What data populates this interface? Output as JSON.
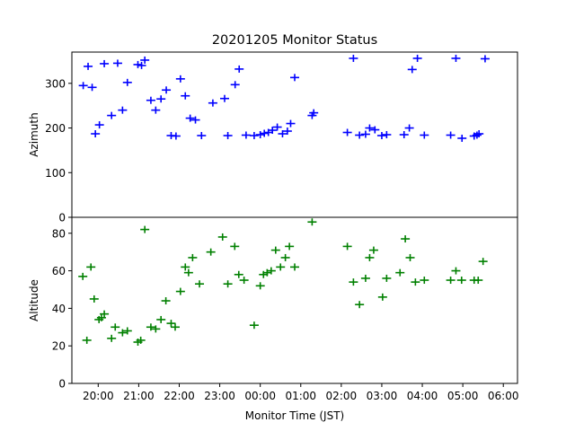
{
  "chart_data": {
    "type": "scatter",
    "title": "20201205 Monitor Status",
    "xlabel": "Monitor Time (JST)",
    "x_unit": "hours (JST clock, values past 24 are after midnight)",
    "xlim": [
      19.35,
      30.35
    ],
    "xticks": [
      {
        "value": 20,
        "label": "20:00"
      },
      {
        "value": 21,
        "label": "21:00"
      },
      {
        "value": 22,
        "label": "22:00"
      },
      {
        "value": 23,
        "label": "23:00"
      },
      {
        "value": 24,
        "label": "00:00"
      },
      {
        "value": 25,
        "label": "01:00"
      },
      {
        "value": 26,
        "label": "02:00"
      },
      {
        "value": 27,
        "label": "03:00"
      },
      {
        "value": 28,
        "label": "04:00"
      },
      {
        "value": 29,
        "label": "05:00"
      },
      {
        "value": 30,
        "label": "06:00"
      }
    ],
    "grid": false,
    "marker": "plus",
    "panels": [
      {
        "id": "azimuth",
        "ylabel": "Azimuth",
        "ylim": [
          0,
          370
        ],
        "yticks": [
          0,
          100,
          200,
          300
        ],
        "color": "#0000ff",
        "points": [
          [
            19.63,
            295
          ],
          [
            19.75,
            338
          ],
          [
            19.85,
            291
          ],
          [
            19.93,
            187
          ],
          [
            20.03,
            207
          ],
          [
            20.15,
            344
          ],
          [
            20.33,
            228
          ],
          [
            20.48,
            345
          ],
          [
            20.6,
            240
          ],
          [
            20.72,
            302
          ],
          [
            20.98,
            342
          ],
          [
            21.07,
            340
          ],
          [
            21.15,
            352
          ],
          [
            21.3,
            262
          ],
          [
            21.42,
            240
          ],
          [
            21.55,
            265
          ],
          [
            21.68,
            285
          ],
          [
            21.8,
            183
          ],
          [
            21.92,
            182
          ],
          [
            22.03,
            310
          ],
          [
            22.15,
            272
          ],
          [
            22.27,
            222
          ],
          [
            22.4,
            218
          ],
          [
            22.55,
            183
          ],
          [
            22.83,
            256
          ],
          [
            23.12,
            266
          ],
          [
            23.2,
            183
          ],
          [
            23.38,
            297
          ],
          [
            23.48,
            332
          ],
          [
            23.65,
            184
          ],
          [
            23.85,
            183
          ],
          [
            24.0,
            185
          ],
          [
            24.1,
            188
          ],
          [
            24.2,
            190
          ],
          [
            24.3,
            195
          ],
          [
            24.42,
            202
          ],
          [
            24.55,
            187
          ],
          [
            24.67,
            193
          ],
          [
            24.75,
            210
          ],
          [
            24.85,
            313
          ],
          [
            25.28,
            228
          ],
          [
            25.32,
            234
          ],
          [
            26.15,
            190
          ],
          [
            26.3,
            356
          ],
          [
            26.45,
            184
          ],
          [
            26.6,
            186
          ],
          [
            26.7,
            200
          ],
          [
            26.83,
            196
          ],
          [
            27.0,
            183
          ],
          [
            27.12,
            185
          ],
          [
            27.55,
            185
          ],
          [
            27.68,
            200
          ],
          [
            27.75,
            331
          ],
          [
            27.88,
            356
          ],
          [
            28.05,
            184
          ],
          [
            28.7,
            184
          ],
          [
            28.83,
            356
          ],
          [
            28.98,
            177
          ],
          [
            29.28,
            182
          ],
          [
            29.35,
            184
          ],
          [
            29.4,
            187
          ],
          [
            29.55,
            355
          ]
        ]
      },
      {
        "id": "altitude",
        "ylabel": "Altitude",
        "ylim": [
          0,
          88.5
        ],
        "yticks": [
          0,
          20,
          40,
          60,
          80
        ],
        "color": "#008000",
        "points": [
          [
            19.62,
            57
          ],
          [
            19.72,
            23
          ],
          [
            19.82,
            62
          ],
          [
            19.9,
            45
          ],
          [
            20.02,
            34
          ],
          [
            20.08,
            35
          ],
          [
            20.15,
            37
          ],
          [
            20.33,
            24
          ],
          [
            20.42,
            30
          ],
          [
            20.6,
            27
          ],
          [
            20.72,
            28
          ],
          [
            20.98,
            22
          ],
          [
            21.05,
            23
          ],
          [
            21.15,
            82
          ],
          [
            21.3,
            30
          ],
          [
            21.42,
            29
          ],
          [
            21.55,
            34
          ],
          [
            21.67,
            44
          ],
          [
            21.8,
            32
          ],
          [
            21.9,
            30
          ],
          [
            22.03,
            49
          ],
          [
            22.15,
            62
          ],
          [
            22.23,
            59
          ],
          [
            22.33,
            67
          ],
          [
            22.5,
            53
          ],
          [
            22.78,
            70
          ],
          [
            23.07,
            78
          ],
          [
            23.2,
            53
          ],
          [
            23.37,
            73
          ],
          [
            23.47,
            58
          ],
          [
            23.6,
            55
          ],
          [
            23.85,
            31
          ],
          [
            24.0,
            52
          ],
          [
            24.08,
            58
          ],
          [
            24.17,
            59
          ],
          [
            24.27,
            60
          ],
          [
            24.38,
            71
          ],
          [
            24.5,
            62
          ],
          [
            24.62,
            67
          ],
          [
            24.72,
            73
          ],
          [
            24.85,
            62
          ],
          [
            25.28,
            86
          ],
          [
            26.15,
            73
          ],
          [
            26.3,
            54
          ],
          [
            26.45,
            42
          ],
          [
            26.6,
            56
          ],
          [
            26.7,
            67
          ],
          [
            26.8,
            71
          ],
          [
            27.02,
            46
          ],
          [
            27.12,
            56
          ],
          [
            27.45,
            59
          ],
          [
            27.58,
            77
          ],
          [
            27.7,
            67
          ],
          [
            27.83,
            54
          ],
          [
            28.05,
            55
          ],
          [
            28.7,
            55
          ],
          [
            28.83,
            60
          ],
          [
            28.97,
            55
          ],
          [
            29.28,
            55
          ],
          [
            29.38,
            55
          ],
          [
            29.5,
            65
          ]
        ]
      }
    ]
  }
}
